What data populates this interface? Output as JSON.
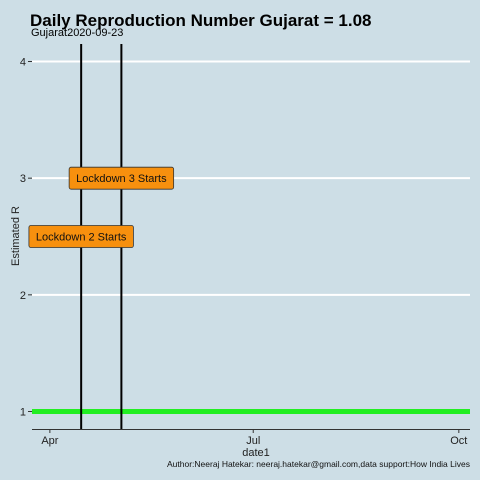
{
  "chart_data": {
    "type": "line",
    "title": "Daily Reproduction Number Gujarat = 1.08",
    "subtitle": "Gujarat2020-09-23",
    "xlabel": "date1",
    "ylabel": "Estimated R",
    "caption": "Author:Neeraj Hatekar: neeraj.hatekar@gmail.com,data support:How India Lives",
    "xlim": [
      "2020-03-24",
      "2020-10-06"
    ],
    "ylim": [
      0.85,
      4.15
    ],
    "x_ticks": [
      {
        "date": "2020-04-01",
        "label": "Apr"
      },
      {
        "date": "2020-07-01",
        "label": "Jul"
      },
      {
        "date": "2020-10-01",
        "label": "Oct"
      }
    ],
    "y_ticks": [
      1,
      2,
      3,
      4
    ],
    "grid": "horizontal",
    "series": [
      {
        "color": "#22ee22",
        "x": [
          "2020-03-24",
          "2020-10-06"
        ],
        "y": [
          1,
          1
        ]
      }
    ],
    "vlines": [
      "2020-04-15",
      "2020-05-03"
    ],
    "annotations": [
      {
        "text": "Lockdown 2 Starts",
        "x": "2020-04-15",
        "y": 2.5,
        "fill": "#f7900e"
      },
      {
        "text": "Lockdown 3 Starts",
        "x": "2020-05-03",
        "y": 3.0,
        "fill": "#f7900e"
      }
    ],
    "colors": {
      "background": "#cddee6",
      "grid": "#ffffff",
      "vline": "#000000"
    }
  }
}
